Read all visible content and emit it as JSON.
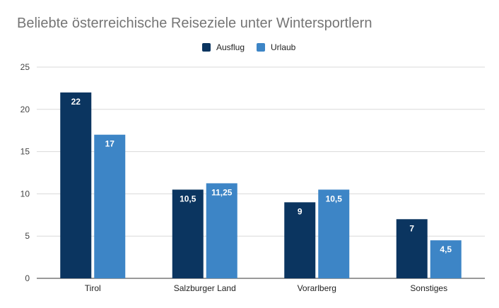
{
  "chart_data": {
    "type": "bar",
    "title": "Beliebte österreichische Reiseziele unter Wintersportlern",
    "categories": [
      "Tirol",
      "Salzburger Land",
      "Vorarlberg",
      "Sonstiges"
    ],
    "series": [
      {
        "name": "Ausflug",
        "values": [
          22,
          10.5,
          9,
          7
        ],
        "labels": [
          "22",
          "10,5",
          "9",
          "7"
        ],
        "color": "#0b3560"
      },
      {
        "name": "Urlaub",
        "values": [
          17,
          11.25,
          10.5,
          4.5
        ],
        "labels": [
          "17",
          "11,25",
          "10,5",
          "4,5"
        ],
        "color": "#3d85c6"
      }
    ],
    "ylim": [
      0,
      25
    ],
    "yticks": [
      0,
      5,
      10,
      15,
      20,
      25
    ],
    "grid": true,
    "legend_position": "top-center"
  }
}
